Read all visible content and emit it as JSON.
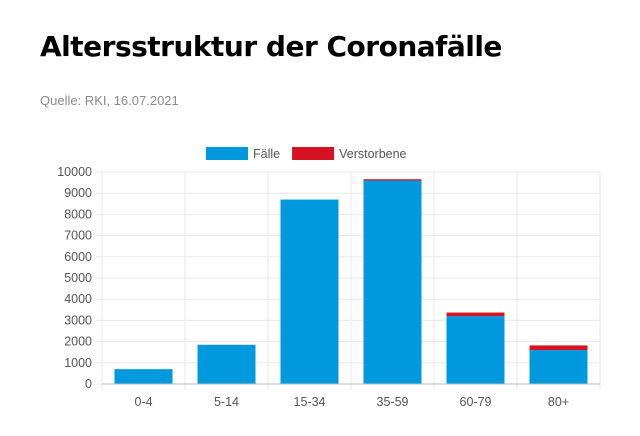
{
  "header": {
    "title": "Altersstruktur der Coronafälle",
    "source": "Quelle: RKI, 16.07.2021"
  },
  "colors": {
    "faelle": "#0099dd",
    "verstorbene": "#d51221",
    "grid": "#e8e8e8",
    "text": "#555555"
  },
  "chart_data": {
    "type": "bar",
    "stacked": true,
    "title": "Altersstruktur der Coronafälle",
    "categories": [
      "0-4",
      "5-14",
      "15-34",
      "35-59",
      "60-79",
      "80+"
    ],
    "series": [
      {
        "name": "Fälle",
        "values": [
          700,
          1850,
          8700,
          9600,
          3200,
          1600
        ]
      },
      {
        "name": "Verstorbene",
        "values": [
          0,
          0,
          0,
          60,
          170,
          220
        ]
      }
    ],
    "ylim": [
      0,
      10000
    ],
    "yticks": [
      0,
      1000,
      2000,
      3000,
      4000,
      5000,
      6000,
      7000,
      8000,
      9000,
      10000
    ],
    "grid": true,
    "legend": "top-center"
  }
}
